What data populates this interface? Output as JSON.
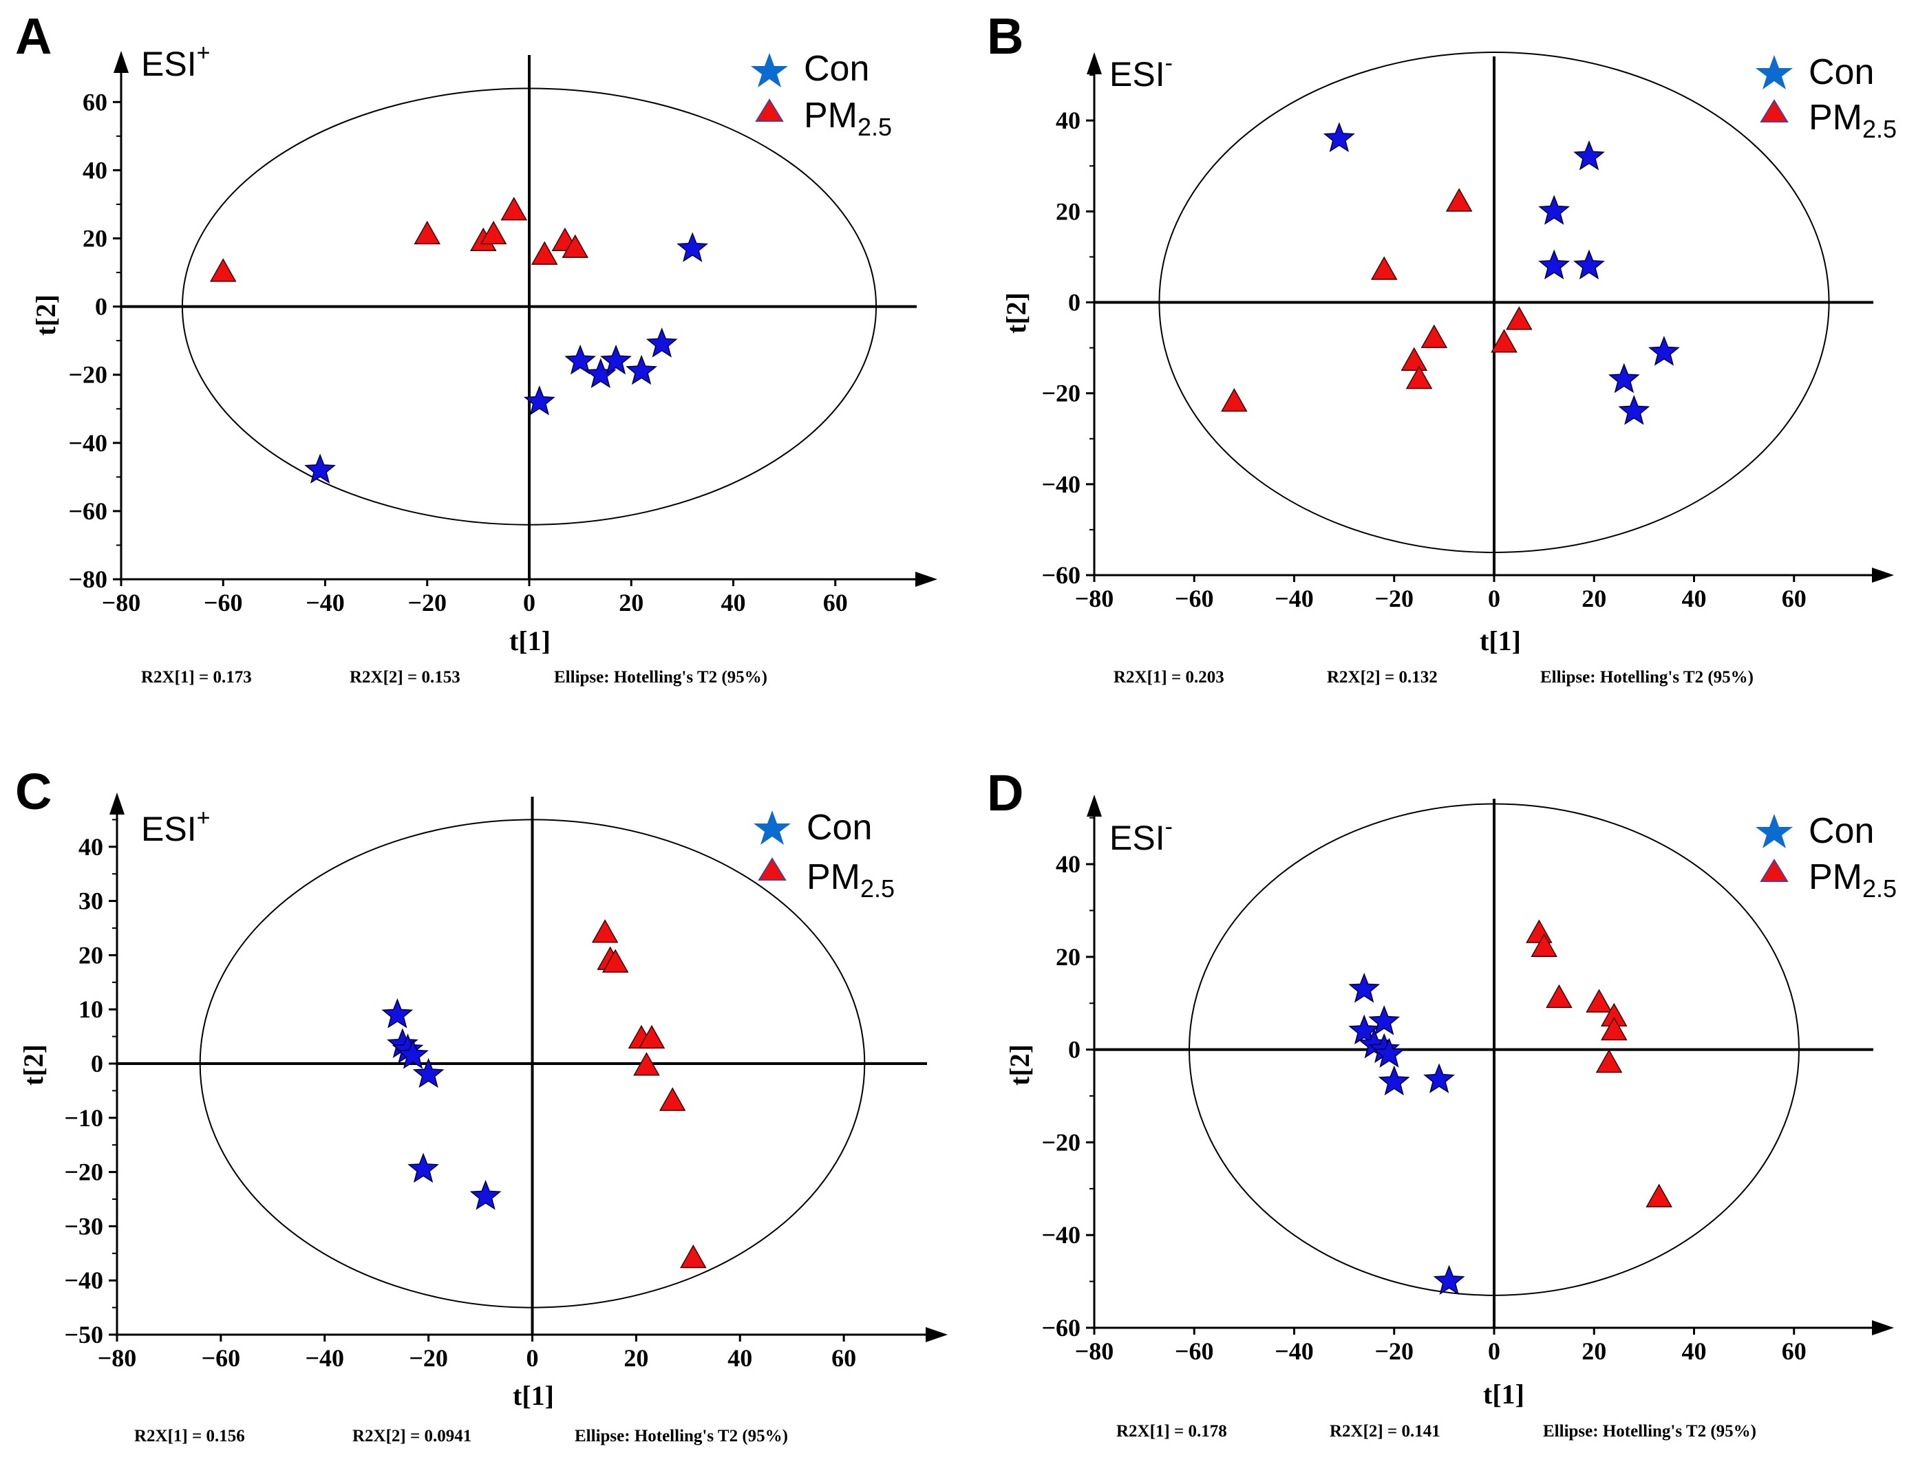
{
  "figure": {
    "footer_labels": [
      "r2x1",
      "r2x2",
      "ellipse"
    ]
  },
  "colors": {
    "con": "#1010e0",
    "pm": "#ee1010",
    "legend_con": "#0b6bcf",
    "legend_pm": "#ee1010",
    "axis": "#000000"
  },
  "legend": {
    "con": "Con",
    "pm_main": "PM",
    "pm_sub": "2.5"
  },
  "chart_data": [
    {
      "id": "A",
      "panel": "A",
      "type": "scatter",
      "esi_main": "ESI",
      "esi_sup": "+",
      "xlabel": "t[1]",
      "ylabel": "t[2]",
      "xlim": [
        -80,
        80
      ],
      "ylim": [
        -80,
        75
      ],
      "xticks": [
        -80,
        -60,
        -40,
        -20,
        0,
        20,
        40,
        60
      ],
      "yticks": [
        -80,
        -60,
        -40,
        -20,
        0,
        20,
        40,
        60
      ],
      "ellipse": {
        "rx": 68,
        "ry": 64
      },
      "footer": {
        "r2x1": "R2X[1] = 0.173",
        "r2x2": "R2X[2] = 0.153",
        "ellipse": "Ellipse: Hotelling's T2 (95%)"
      },
      "series": [
        {
          "name": "Con",
          "marker": "star",
          "points": [
            [
              -41,
              -48
            ],
            [
              2,
              -28
            ],
            [
              10,
              -16
            ],
            [
              14,
              -20
            ],
            [
              17,
              -16
            ],
            [
              22,
              -19
            ],
            [
              26,
              -11
            ],
            [
              32,
              17
            ]
          ]
        },
        {
          "name": "PM2.5",
          "marker": "triangle",
          "points": [
            [
              -60,
              10
            ],
            [
              -20,
              21
            ],
            [
              -9,
              19
            ],
            [
              -7,
              21
            ],
            [
              -3,
              28
            ],
            [
              3,
              15
            ],
            [
              7,
              19
            ],
            [
              9,
              17
            ]
          ]
        }
      ]
    },
    {
      "id": "B",
      "panel": "B",
      "type": "scatter",
      "esi_main": "ESI",
      "esi_sup": "-",
      "xlabel": "t[1]",
      "ylabel": "t[2]",
      "xlim": [
        -80,
        80
      ],
      "ylim": [
        -60,
        55
      ],
      "xticks": [
        -80,
        -60,
        -40,
        -20,
        0,
        20,
        40,
        60
      ],
      "yticks": [
        -60,
        -40,
        -20,
        0,
        20,
        40
      ],
      "ellipse": {
        "rx": 67,
        "ry": 55
      },
      "footer": {
        "r2x1": "R2X[1] = 0.203",
        "r2x2": "R2X[2] = 0.132",
        "ellipse": "Ellipse: Hotelling's T2 (95%)"
      },
      "series": [
        {
          "name": "Con",
          "marker": "star",
          "points": [
            [
              -31,
              36
            ],
            [
              12,
              20
            ],
            [
              12,
              8
            ],
            [
              19,
              32
            ],
            [
              19,
              8
            ],
            [
              26,
              -17
            ],
            [
              28,
              -24
            ],
            [
              34,
              -11
            ]
          ]
        },
        {
          "name": "PM2.5",
          "marker": "triangle",
          "points": [
            [
              -52,
              -22
            ],
            [
              -22,
              7
            ],
            [
              -16,
              -13
            ],
            [
              -15,
              -17
            ],
            [
              -12,
              -8
            ],
            [
              -7,
              22
            ],
            [
              2,
              -9
            ],
            [
              5,
              -4
            ]
          ]
        }
      ]
    },
    {
      "id": "C",
      "panel": "C",
      "type": "scatter",
      "esi_main": "ESI",
      "esi_sup": "+",
      "xlabel": "t[1]",
      "ylabel": "t[2]",
      "xlim": [
        -80,
        80
      ],
      "ylim": [
        -50,
        50
      ],
      "xticks": [
        -80,
        -60,
        -40,
        -20,
        0,
        20,
        40,
        60
      ],
      "yticks": [
        -50,
        -40,
        -30,
        -20,
        -10,
        0,
        10,
        20,
        30,
        40
      ],
      "ellipse": {
        "rx": 64,
        "ry": 45
      },
      "footer": {
        "r2x1": "R2X[1] = 0.156",
        "r2x2": "R2X[2] = 0.0941",
        "ellipse": "Ellipse: Hotelling's T2 (95%)"
      },
      "series": [
        {
          "name": "Con",
          "marker": "star",
          "points": [
            [
              -26,
              9
            ],
            [
              -25,
              3.5
            ],
            [
              -24,
              2.5
            ],
            [
              -23,
              1.5
            ],
            [
              -20,
              -2
            ],
            [
              -21,
              -19.5
            ],
            [
              -9,
              -24.5
            ]
          ]
        },
        {
          "name": "PM2.5",
          "marker": "triangle",
          "points": [
            [
              14,
              24
            ],
            [
              15,
              19
            ],
            [
              16,
              18.5
            ],
            [
              21,
              4.5
            ],
            [
              23,
              4.5
            ],
            [
              22,
              -0.5
            ],
            [
              27,
              -7
            ],
            [
              31,
              -36
            ]
          ]
        }
      ]
    },
    {
      "id": "D",
      "panel": "D",
      "type": "scatter",
      "esi_main": "ESI",
      "esi_sup": "-",
      "xlabel": "t[1]",
      "ylabel": "t[2]",
      "xlim": [
        -80,
        80
      ],
      "ylim": [
        -60,
        55
      ],
      "xticks": [
        -80,
        -60,
        -40,
        -20,
        0,
        20,
        40,
        60
      ],
      "yticks": [
        -60,
        -40,
        -20,
        0,
        20,
        40
      ],
      "ellipse": {
        "rx": 61,
        "ry": 53
      },
      "footer": {
        "r2x1": "R2X[1] = 0.178",
        "r2x2": "R2X[2] = 0.141",
        "ellipse": "Ellipse: Hotelling's T2 (95%)"
      },
      "series": [
        {
          "name": "Con",
          "marker": "star",
          "points": [
            [
              -26,
              13
            ],
            [
              -26,
              4
            ],
            [
              -24,
              1
            ],
            [
              -22,
              6
            ],
            [
              -22,
              0
            ],
            [
              -21,
              -1
            ],
            [
              -20,
              -7
            ],
            [
              -11,
              -6.5
            ],
            [
              -9,
              -50
            ]
          ]
        },
        {
          "name": "PM2.5",
          "marker": "triangle",
          "points": [
            [
              9,
              25
            ],
            [
              10,
              22
            ],
            [
              13,
              11
            ],
            [
              21,
              10
            ],
            [
              24,
              7
            ],
            [
              24,
              4
            ],
            [
              23,
              -3
            ],
            [
              33,
              -32
            ]
          ]
        }
      ]
    }
  ]
}
